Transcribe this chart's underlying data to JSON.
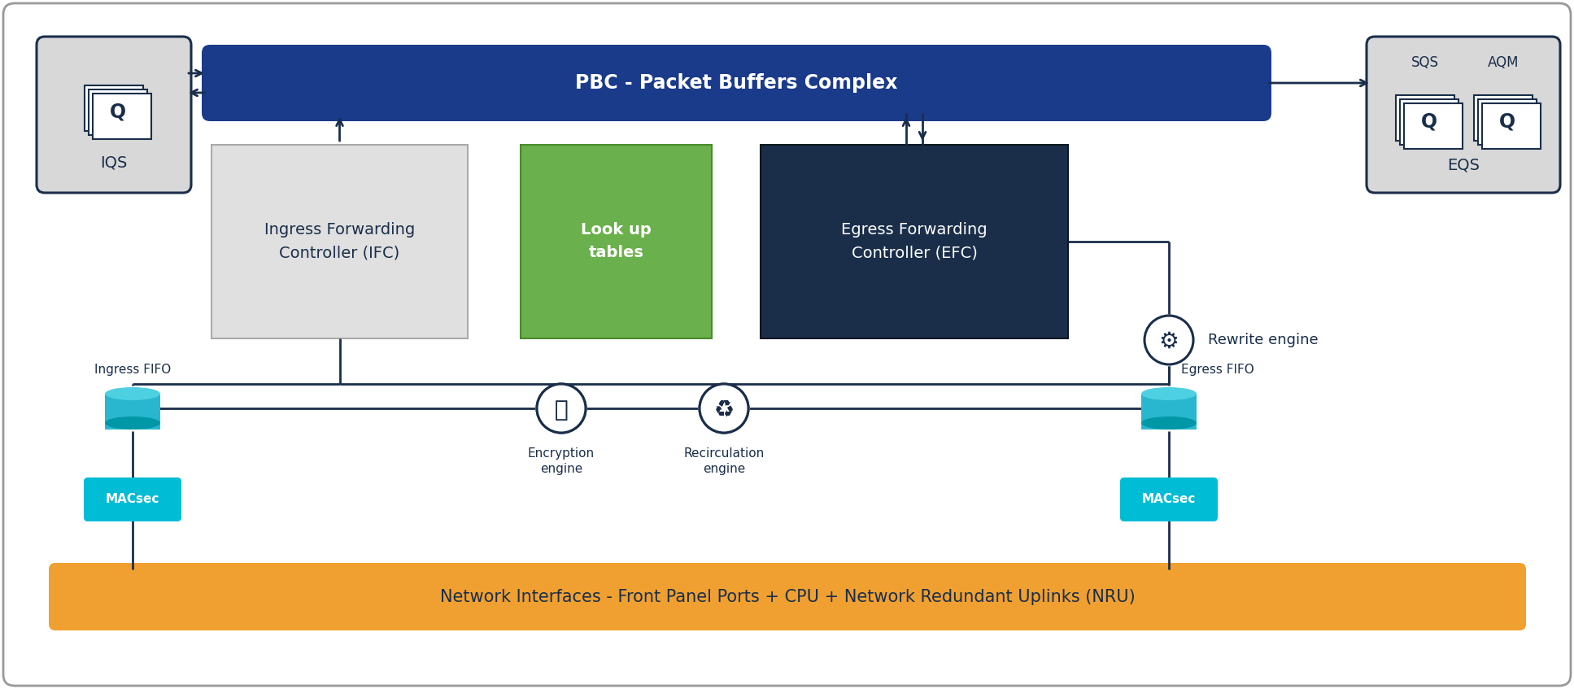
{
  "navy": "#1a2e4a",
  "pbc_blue": "#1a3a8a",
  "gray_bg": "#d8d8d8",
  "ifc_fill": "#e0e0e0",
  "lut_fill": "#6ab04c",
  "lut_edge": "#4a8c2a",
  "efc_fill": "#1a2e4a",
  "orange_fill": "#f0a030",
  "barrel_top": "#4dd0e1",
  "barrel_mid": "#29b6cf",
  "barrel_bot": "#0097a7",
  "macsec_fill": "#00bcd4",
  "pbc_text": "PBC - Packet Buffers Complex",
  "ifc_text": "Ingress Forwarding\nController (IFC)",
  "lut_text": "Look up\ntables",
  "efc_text": "Egress Forwarding\nController (EFC)",
  "iqs_label": "IQS",
  "eqs_label": "EQS",
  "sqs_label": "SQS",
  "aqm_label": "AQM",
  "ingress_fifo_label": "Ingress FIFO",
  "egress_fifo_label": "Egress FIFO",
  "macsec_label": "MACsec",
  "encryption_label": "Encryption\nengine",
  "recirculation_label": "Recirculation\nengine",
  "rewrite_label": "Rewrite engine",
  "network_label": "Network Interfaces - Front Panel Ports + CPU + Network Redundant Uplinks (NRU)"
}
